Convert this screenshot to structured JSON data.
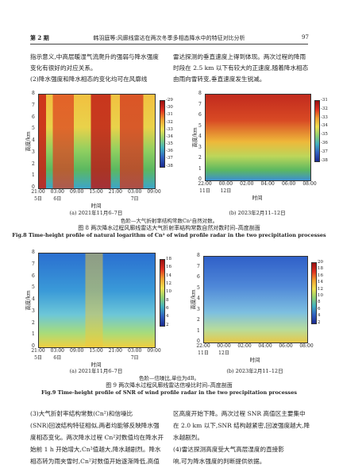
{
  "header": {
    "issue": "第 2 期",
    "running_title": "韩羽庭等:风廓线雷达在两次冬季多相态降水中的特征对比分析",
    "page": "97"
  },
  "top_text": {
    "left": [
      "指示意义,中高层暖湿气流爬升的强弱与降水强度",
      "变化有很好的对应关系。",
      "(2)降水强度和降水相态的变化均可在风廓线"
    ],
    "right": [
      "雷达探测的垂直速度上得到体现。两次过程的降雨",
      "时段在 2.5 km 以下有较大的正速度,随着降水相态",
      "由雨向雪转变,垂直速度发生锐减。"
    ]
  },
  "figures": [
    {
      "panels": [
        {
          "y_label": "高度/km",
          "y_ticks": [
            "0",
            "1",
            "2",
            "3",
            "4",
            "5",
            "6",
            "7",
            "8"
          ],
          "x_label": "时间",
          "x_ticks": [
            {
              "time": "21:00",
              "day": "5日"
            },
            {
              "time": "03:00",
              "day": "6日"
            },
            {
              "time": "09:00"
            },
            {
              "time": "15:00"
            },
            {
              "time": "21:00"
            },
            {
              "time": "03:00",
              "day": "7日"
            },
            {
              "time": "09:00"
            }
          ],
          "colorbar_ticks": [
            "-29",
            "-30",
            "-31",
            "-32",
            "-33",
            "-34",
            "-35",
            "-36",
            "-37",
            "-38"
          ],
          "caption": "(a) 2021年11月6–7日"
        },
        {
          "y_label": "高度/km",
          "y_ticks": [
            "0",
            "1",
            "2",
            "3",
            "4",
            "5",
            "6",
            "7",
            "8"
          ],
          "x_label": "时间",
          "x_ticks": [
            {
              "time": "22:00",
              "day": "11日"
            },
            {
              "time": "00:00",
              "day": "12日"
            },
            {
              "time": "02:00"
            },
            {
              "time": "04:00"
            },
            {
              "time": "06:00"
            },
            {
              "time": "08:00"
            }
          ],
          "colorbar_ticks": [
            "-31",
            "-32",
            "-33",
            "-34",
            "-35",
            "-36",
            "-37",
            "-38"
          ],
          "caption": "(b) 2023年2月11–12日"
        }
      ],
      "note": "色阶—大气折射率结构常数Cn²自然对数。",
      "title_cn": "图 8  两次降水过程风廓线雷达大气折射率结构常数自然对数时间–高度剖面",
      "title_en": "Fig.8  Time-height profile of natural logarithm of Cn² of wind profile radar in the two precipitation processes"
    },
    {
      "panels": [
        {
          "y_label": "高度/km",
          "y_ticks": [
            "0",
            "1",
            "2",
            "3",
            "4",
            "5",
            "6",
            "7",
            "8"
          ],
          "x_label": "时间",
          "x_ticks": [
            {
              "time": "21:00",
              "day": "5日"
            },
            {
              "time": "03:00",
              "day": "6日"
            },
            {
              "time": "09:00"
            },
            {
              "time": "15:00"
            },
            {
              "time": "21:00"
            },
            {
              "time": "03:00",
              "day": "7日"
            },
            {
              "time": "09:00"
            }
          ],
          "colorbar_ticks": [
            "18",
            "16",
            "14",
            "12",
            "10",
            "8",
            "6",
            "4",
            "2"
          ],
          "caption": "(a) 2021年11月6–7日"
        },
        {
          "y_label": "高度/km",
          "y_ticks": [
            "0",
            "1",
            "2",
            "3",
            "4",
            "5",
            "6",
            "7",
            "8"
          ],
          "x_label": "时间",
          "x_ticks": [
            {
              "time": "22:00",
              "day": "11日"
            },
            {
              "time": "00:00",
              "day": "12日"
            },
            {
              "time": "02:00"
            },
            {
              "time": "04:00"
            },
            {
              "time": "06:00"
            },
            {
              "time": "08:00"
            }
          ],
          "colorbar_ticks": [
            "20",
            "18",
            "16",
            "14",
            "12",
            "10",
            "8",
            "6",
            "4",
            "2"
          ],
          "caption": "(b) 2023年2月11–12日"
        }
      ],
      "note": "色阶—信噪比,单位为dB。",
      "title_cn": "图 9  两次降水过程风廓线雷达信噪比时间–高度剖面",
      "title_en": "Fig.9  Time-height profile of SNR of wind profile radar in the two precipitation processes"
    }
  ],
  "bottom_text": {
    "left": [
      "(3)大气折射率结构常数(Cn²)和信噪比",
      "(SNR)回波结构特征相似,两者均能够反映降水强",
      "度相态变化。两次降水过程 Cn²对数值均在降水开",
      "始前 1 h 开始增大,Cn²值越大,降水越剧烈。降水",
      "相态转为雨夹雪时,Cn²对数值开始逐渐降低,高值"
    ],
    "right": [
      "区高度开始下降。两次过程 SNR 高值区主要集中",
      "在 2.0 km 以下,SNR 结构越紧密,回波强度越大,降",
      "水越剧烈。",
      "(4)雷达探测高度受大气高层湿度的直接影",
      "响,可为降水强度的判断提供依据。"
    ]
  }
}
